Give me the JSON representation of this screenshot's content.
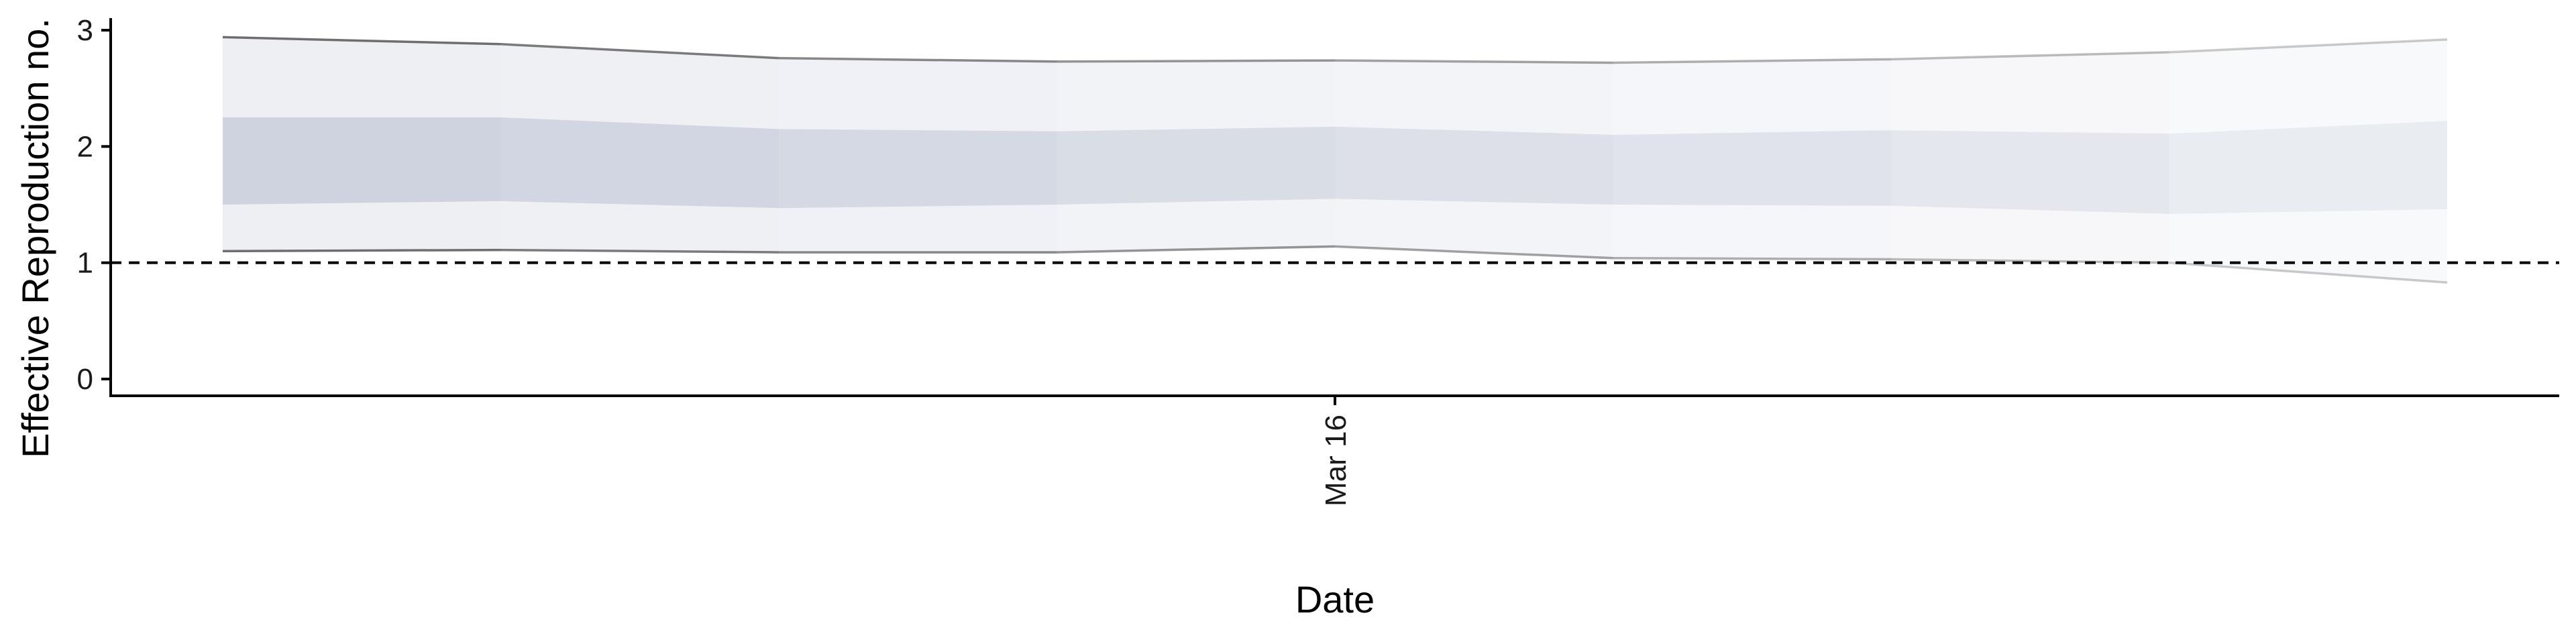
{
  "chart_data": {
    "type": "area",
    "title": "",
    "xlabel": "Date",
    "ylabel": "Effective Reproduction no.",
    "x": [
      "2020-03-12",
      "2020-03-13",
      "2020-03-14",
      "2020-03-15",
      "2020-03-16",
      "2020-03-17",
      "2020-03-18",
      "2020-03-19",
      "2020-03-20"
    ],
    "x_ticks": [
      {
        "date": "2020-03-16",
        "label": "Mar 16"
      }
    ],
    "ylim": [
      -0.15,
      3.08
    ],
    "y_ticks": [
      0,
      1,
      2,
      3
    ],
    "series": [
      {
        "band": "90% interval",
        "lower": [
          1.1,
          1.11,
          1.09,
          1.09,
          1.14,
          1.04,
          1.03,
          1.0,
          0.83
        ],
        "upper": [
          2.94,
          2.88,
          2.76,
          2.73,
          2.74,
          2.72,
          2.75,
          2.81,
          2.92
        ],
        "color": "#dee1ea"
      },
      {
        "band": "50% interval",
        "lower": [
          1.5,
          1.53,
          1.47,
          1.5,
          1.55,
          1.5,
          1.49,
          1.42,
          1.46
        ],
        "upper": [
          2.25,
          2.25,
          2.15,
          2.13,
          2.17,
          2.1,
          2.14,
          2.11,
          2.22
        ],
        "color": "#c9cedc"
      }
    ],
    "reference_line": {
      "y": 1,
      "style": "dashed"
    },
    "grid": false,
    "legend": "none"
  }
}
